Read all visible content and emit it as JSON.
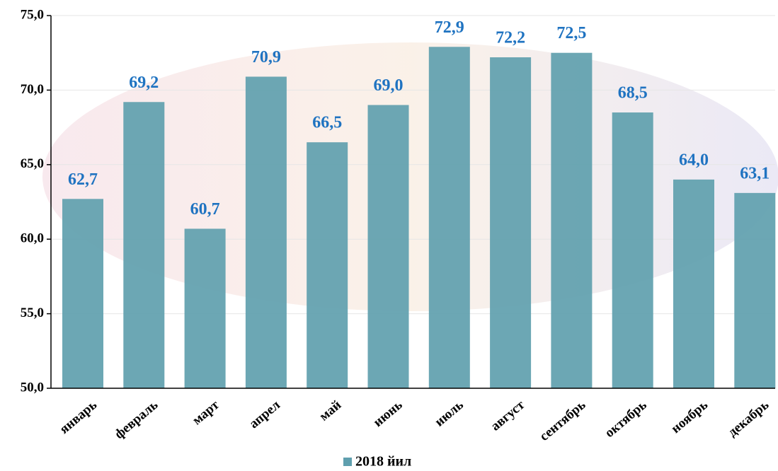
{
  "chart_data": {
    "type": "bar",
    "categories": [
      "январь",
      "февраль",
      "март",
      "апрел",
      "май",
      "июнь",
      "июль",
      "август",
      "сентябрь",
      "октябрь",
      "ноябрь",
      "декабрь"
    ],
    "series": [
      {
        "name": "2018 йил",
        "color": "#5f9fae",
        "values": [
          62.7,
          69.2,
          60.7,
          70.9,
          66.5,
          69.0,
          72.9,
          72.2,
          72.5,
          68.5,
          64.0,
          63.1
        ],
        "value_labels": [
          "62,7",
          "69,2",
          "60,7",
          "70,9",
          "66,5",
          "69,0",
          "72,9",
          "72,2",
          "72,5",
          "68,5",
          "64,0",
          "63,1"
        ]
      }
    ],
    "ylim": [
      50,
      75
    ],
    "yticks": [
      {
        "value": 50,
        "label": "50,0"
      },
      {
        "value": 55,
        "label": "55,0"
      },
      {
        "value": 60,
        "label": "60,0"
      },
      {
        "value": 65,
        "label": "65,0"
      },
      {
        "value": 70,
        "label": "70,0"
      },
      {
        "value": 75,
        "label": "75,0"
      }
    ],
    "grid": true,
    "legend": "bottom"
  }
}
